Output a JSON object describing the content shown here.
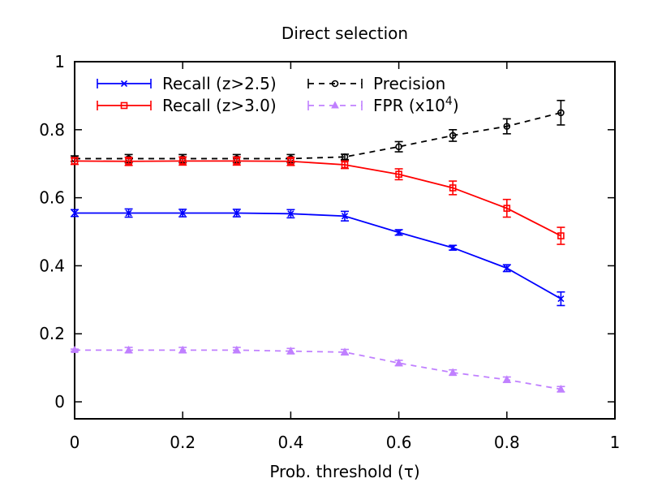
{
  "chart_data": {
    "type": "line",
    "title": "Direct selection",
    "xlabel": "Prob. threshold (τ)",
    "ylabel": "",
    "xlim": [
      0,
      1
    ],
    "ylim": [
      -0.05,
      1
    ],
    "xticks": [
      0,
      0.2,
      0.4,
      0.6,
      0.8,
      1
    ],
    "yticks": [
      0,
      0.2,
      0.4,
      0.6,
      0.8,
      1
    ],
    "xtick_labels": [
      "0",
      "0.2",
      "0.4",
      "0.6",
      "0.8",
      "1"
    ],
    "ytick_labels": [
      "0",
      "0.2",
      "0.4",
      "0.6",
      "0.8",
      "1"
    ],
    "legend_position": "top-left",
    "x": [
      0,
      0.1,
      0.2,
      0.3,
      0.4,
      0.5,
      0.6,
      0.7,
      0.8,
      0.9
    ],
    "series": [
      {
        "name": "Recall (z>2.5)",
        "color": "#0000ff",
        "marker": "x",
        "dash": false,
        "values": [
          0.555,
          0.555,
          0.555,
          0.555,
          0.553,
          0.546,
          0.498,
          0.453,
          0.393,
          0.303
        ],
        "errors": [
          0.01,
          0.012,
          0.011,
          0.011,
          0.012,
          0.014,
          0.008,
          0.007,
          0.01,
          0.02
        ]
      },
      {
        "name": "Recall (z>3.0)",
        "color": "#ff0000",
        "marker": "square",
        "dash": false,
        "values": [
          0.708,
          0.707,
          0.708,
          0.708,
          0.707,
          0.697,
          0.669,
          0.629,
          0.569,
          0.488
        ],
        "errors": [
          0.01,
          0.012,
          0.012,
          0.012,
          0.012,
          0.011,
          0.016,
          0.02,
          0.026,
          0.025
        ]
      },
      {
        "name": "Precision",
        "color": "#000000",
        "marker": "circle",
        "dash": true,
        "values": [
          0.715,
          0.715,
          0.715,
          0.715,
          0.715,
          0.72,
          0.75,
          0.783,
          0.81,
          0.85
        ],
        "errors": [
          0.008,
          0.012,
          0.012,
          0.012,
          0.012,
          0.008,
          0.015,
          0.017,
          0.022,
          0.036
        ]
      },
      {
        "name": "FPR (x10",
        "name_sup": "4",
        "name_suffix": ")",
        "color": "#c080ff",
        "marker": "triangle",
        "dash": true,
        "values": [
          0.152,
          0.152,
          0.152,
          0.152,
          0.149,
          0.146,
          0.114,
          0.086,
          0.065,
          0.037
        ],
        "errors": [
          0.003,
          0.008,
          0.008,
          0.008,
          0.008,
          0.008,
          0.008,
          0.008,
          0.008,
          0.008
        ]
      }
    ]
  }
}
